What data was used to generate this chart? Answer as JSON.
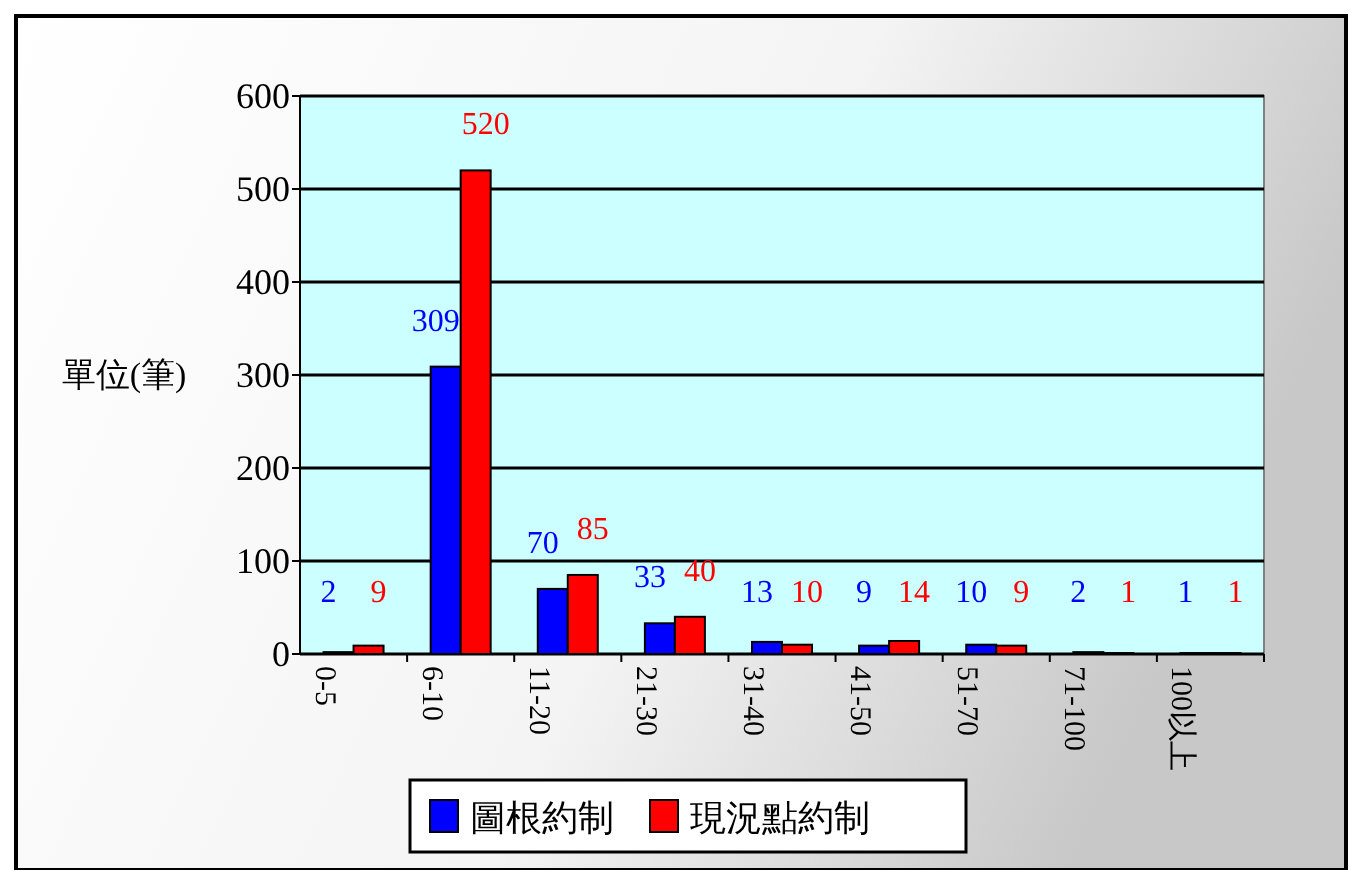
{
  "chart_data": {
    "type": "bar",
    "ylabel": "單位(筆)",
    "categories": [
      "0-5",
      "6-10",
      "11-20",
      "21-30",
      "31-40",
      "41-50",
      "51-70",
      "71-100",
      "100以上"
    ],
    "series": [
      {
        "name": "圖根約制",
        "color": "#0000ff",
        "values": [
          2,
          309,
          70,
          33,
          13,
          9,
          10,
          2,
          1
        ]
      },
      {
        "name": "現況點約制",
        "color": "#ff0000",
        "values": [
          9,
          520,
          85,
          40,
          10,
          14,
          9,
          1,
          1
        ]
      }
    ],
    "ylim": [
      0,
      600
    ],
    "yticks": [
      0,
      100,
      200,
      300,
      400,
      500,
      600
    ],
    "grid": "y",
    "legend": "bottom",
    "data_labels": true
  }
}
